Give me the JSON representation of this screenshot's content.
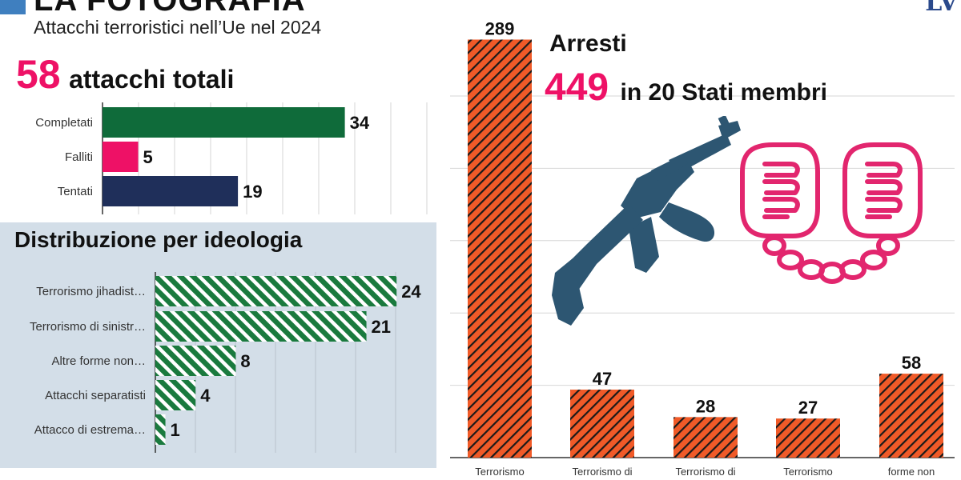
{
  "header": {
    "section_title": "LA FOTOGRAFIA",
    "subtitle": "Attacchi terroristici nell’Ue nel 2024",
    "brand": "LV"
  },
  "totals": {
    "value": "58",
    "label": "attacchi totali"
  },
  "colors": {
    "accent_pink": "#ee1166",
    "green": "#0f6b3a",
    "navy": "#1f2f5a",
    "orange": "#f05a28",
    "panel_bg": "#d3dee8",
    "icon_blue": "#2d5672"
  },
  "chart_data": [
    {
      "type": "bar",
      "orientation": "horizontal",
      "title": "58 attacchi totali",
      "categories": [
        "Completati",
        "Falliti",
        "Tentati"
      ],
      "values": [
        34,
        5,
        19
      ],
      "bar_colors": [
        "#0f6b3a",
        "#ee1166",
        "#1f2f5a"
      ],
      "xlim": [
        0,
        45
      ]
    },
    {
      "type": "bar",
      "orientation": "horizontal",
      "title": "Distribuzione per ideologia",
      "categories": [
        "Terrorismo jihadist…",
        "Terrorismo di sinistr…",
        "Altre forme non…",
        "Attacchi separatisti",
        "Attacco di estrema…"
      ],
      "values": [
        24,
        21,
        8,
        4,
        1
      ],
      "pattern": "diagonal-hatch-green",
      "xlim": [
        0,
        28
      ]
    },
    {
      "type": "bar",
      "orientation": "vertical",
      "title": "Arresti",
      "categories": [
        "Terrorismo",
        "Terrorismo di",
        "Terrorismo di",
        "Terrorismo",
        "forme non"
      ],
      "values": [
        289,
        47,
        28,
        27,
        58
      ],
      "pattern": "diagonal-hatch-orange",
      "ylim": [
        0,
        300
      ]
    }
  ],
  "arrests": {
    "title": "Arresti",
    "value": "449",
    "label": "in 20 Stati membri"
  },
  "icons": [
    "rifle-icon",
    "handcuffs-icon"
  ]
}
